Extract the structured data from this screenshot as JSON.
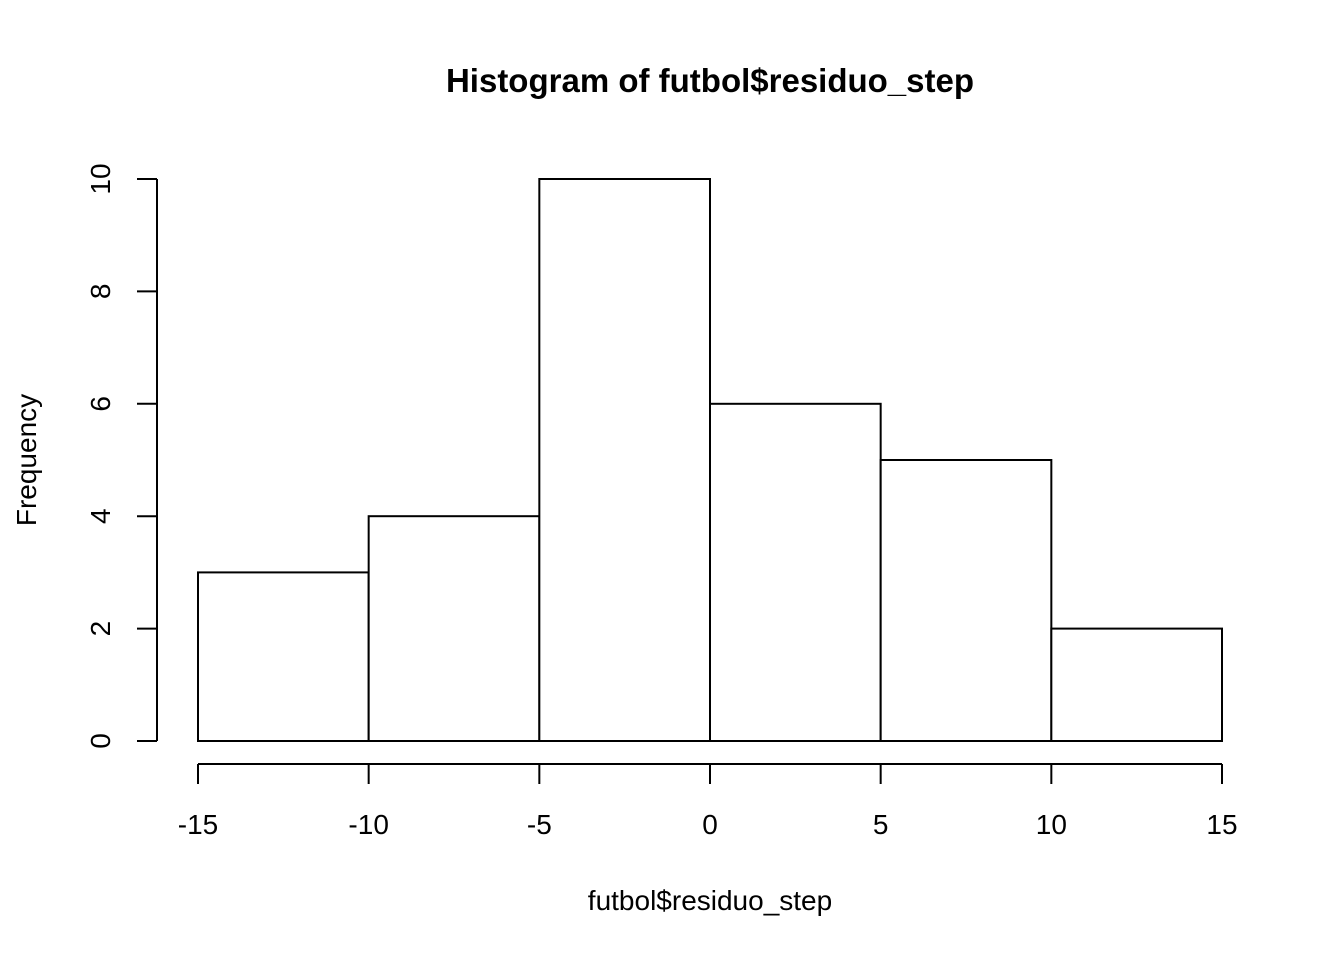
{
  "chart_data": {
    "type": "bar",
    "title": "Histogram of futbol$residuo_step",
    "xlabel": "futbol$residuo_step",
    "ylabel": "Frequency",
    "bins": [
      {
        "from": -15,
        "to": -10,
        "count": 3
      },
      {
        "from": -10,
        "to": -5,
        "count": 4
      },
      {
        "from": -5,
        "to": 0,
        "count": 10
      },
      {
        "from": 0,
        "to": 5,
        "count": 6
      },
      {
        "from": 5,
        "to": 10,
        "count": 5
      },
      {
        "from": 10,
        "to": 15,
        "count": 2
      }
    ],
    "xlim": [
      -15,
      15
    ],
    "ylim": [
      0,
      10
    ],
    "x_ticks": [
      -15,
      -10,
      -5,
      0,
      5,
      10,
      15
    ],
    "y_ticks": [
      0,
      2,
      4,
      6,
      8,
      10
    ],
    "x_tick_labels": [
      "-15",
      "-10",
      "-5",
      "0",
      "5",
      "10",
      "15"
    ],
    "y_tick_labels": [
      "0",
      "2",
      "4",
      "6",
      "8",
      "10"
    ],
    "grid": false,
    "bar_fill": "#ffffff",
    "bar_stroke": "#000000"
  }
}
